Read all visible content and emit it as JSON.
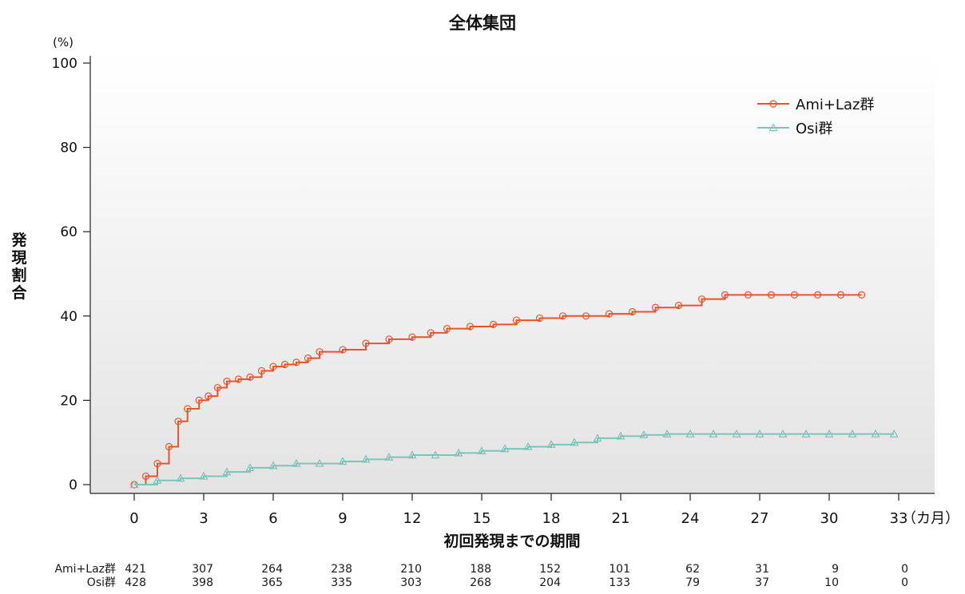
{
  "chart_data": {
    "type": "line",
    "title": "全体集団",
    "xlabel": "初回発現までの期間",
    "ylabel": "発現割合",
    "y_unit": "(%)",
    "x_unit": "（カ月）",
    "xlim": [
      0,
      33
    ],
    "ylim": [
      0,
      100
    ],
    "x_ticks": [
      "0",
      "3",
      "6",
      "9",
      "12",
      "15",
      "18",
      "21",
      "24",
      "27",
      "30",
      "33"
    ],
    "y_ticks": [
      "0",
      "20",
      "40",
      "60",
      "80",
      "100"
    ],
    "legend_position": "top-right",
    "background": "vertical gradient white to light gray",
    "series": [
      {
        "name": "Ami+Laz群",
        "color": "#e8542a",
        "marker": "circle",
        "x": [
          0,
          0.5,
          1.0,
          1.5,
          1.9,
          2.3,
          2.8,
          3.2,
          3.6,
          4.0,
          4.5,
          5.0,
          5.5,
          6.0,
          6.5,
          7.0,
          7.5,
          8.0,
          9.0,
          10.0,
          11.0,
          12.0,
          12.8,
          13.5,
          14.5,
          15.5,
          16.5,
          17.5,
          18.5,
          19.5,
          20.5,
          21.5,
          22.5,
          23.5,
          24.5,
          25.5,
          26.5,
          27.5,
          28.5,
          29.5,
          30.5,
          31.4
        ],
        "y": [
          0,
          2,
          5,
          9,
          15,
          18,
          20,
          21,
          23,
          24.5,
          25,
          25.5,
          27,
          28,
          28.5,
          29,
          30,
          31.5,
          32,
          33.5,
          34.5,
          35,
          36,
          37,
          37.5,
          38,
          39,
          39.5,
          40,
          40,
          40.5,
          41,
          42,
          42.5,
          44,
          45,
          45,
          45,
          45,
          45,
          45,
          45
        ]
      },
      {
        "name": "Osi群",
        "color": "#7cc3b8",
        "marker": "triangle",
        "x": [
          0,
          1.0,
          2.0,
          3.0,
          4.0,
          5.0,
          6.0,
          7.0,
          8.0,
          9.0,
          10.0,
          11.0,
          12.0,
          13.0,
          14.0,
          15.0,
          16.0,
          17.0,
          18.0,
          19.0,
          20.0,
          21.0,
          22.0,
          23.0,
          24.0,
          25.0,
          26.0,
          27.0,
          28.0,
          29.0,
          30.0,
          31.0,
          32.0,
          32.8
        ],
        "y": [
          0,
          1,
          1.5,
          2,
          3,
          4,
          4.5,
          5,
          5,
          5.5,
          6,
          6.5,
          7,
          7,
          7.5,
          8,
          8.5,
          9,
          9.5,
          10,
          11,
          11.5,
          11.8,
          12,
          12,
          12,
          12,
          12,
          12,
          12,
          12,
          12,
          12,
          12
        ]
      }
    ]
  },
  "risk_table": {
    "rows": [
      {
        "label": "Ami+Laz群",
        "values": [
          "421",
          "307",
          "264",
          "238",
          "210",
          "188",
          "152",
          "101",
          "62",
          "31",
          "9",
          "0"
        ]
      },
      {
        "label": "Osi群",
        "values": [
          "428",
          "398",
          "365",
          "335",
          "303",
          "268",
          "204",
          "133",
          "79",
          "37",
          "10",
          "0"
        ]
      }
    ]
  }
}
